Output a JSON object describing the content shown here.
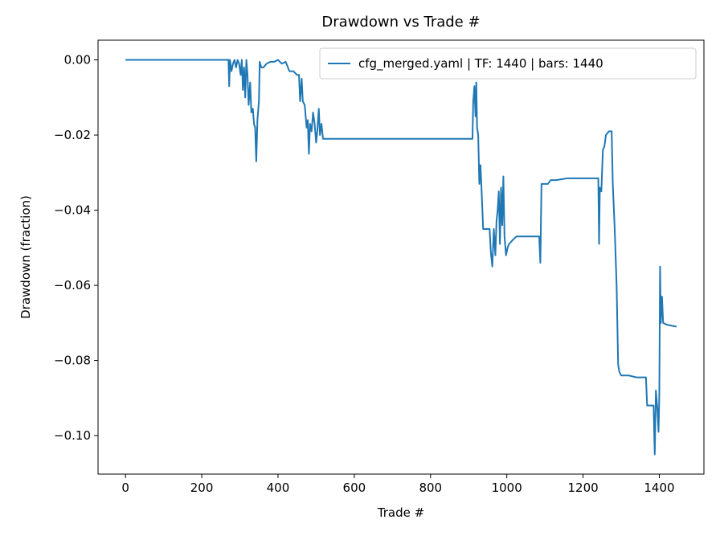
{
  "chart_data": {
    "type": "line",
    "title": "Drawdown vs Trade #",
    "xlabel": "Trade #",
    "ylabel": "Drawdown (fraction)",
    "legend": "upper right",
    "xlim": [
      -72,
      1517
    ],
    "ylim": [
      -0.11025,
      0.00525
    ],
    "xticks": [
      0,
      200,
      400,
      600,
      800,
      1000,
      1200,
      1400
    ],
    "yticks": [
      {
        "value": -0.1,
        "label": "−0.10"
      },
      {
        "value": -0.08,
        "label": "−0.08"
      },
      {
        "value": -0.06,
        "label": "−0.06"
      },
      {
        "value": -0.04,
        "label": "−0.04"
      },
      {
        "value": -0.02,
        "label": "−0.02"
      },
      {
        "value": 0,
        "label": "0.00"
      }
    ],
    "series": [
      {
        "name": "cfg_merged.yaml | TF: 1440 | bars: 1440",
        "color": "#1f77b4",
        "x": [
          0,
          270,
          272,
          274,
          278,
          282,
          286,
          290,
          294,
          298,
          302,
          305,
          308,
          311,
          314,
          317,
          320,
          323,
          327,
          330,
          334,
          337,
          340,
          343,
          346,
          350,
          352,
          356,
          362,
          370,
          380,
          390,
          400,
          410,
          420,
          430,
          440,
          450,
          455,
          458,
          462,
          465,
          470,
          475,
          478,
          481,
          484,
          488,
          492,
          496,
          500,
          503,
          507,
          510,
          514,
          518,
          910,
          912,
          915,
          918,
          920,
          922,
          925,
          928,
          931,
          934,
          938,
          950,
          955,
          958,
          962,
          966,
          970,
          973,
          976,
          979,
          982,
          985,
          988,
          991,
          994,
          998,
          1002,
          1006,
          1015,
          1025,
          1085,
          1088,
          1091,
          1098,
          1108,
          1115,
          1130,
          1160,
          1240,
          1242,
          1244,
          1248,
          1252,
          1256,
          1260,
          1268,
          1275,
          1278,
          1283,
          1288,
          1292,
          1295,
          1300,
          1320,
          1340,
          1365,
          1368,
          1385,
          1388,
          1391,
          1395,
          1398,
          1400,
          1402,
          1404,
          1407,
          1410,
          1420,
          1445
        ],
        "values": [
          0,
          0,
          -0.007,
          0,
          -0.003,
          -0.001,
          0,
          -0.002,
          0,
          -0.001,
          -0.004,
          0,
          -0.008,
          -0.002,
          -0.01,
          0,
          -0.004,
          -0.012,
          -0.006,
          -0.014,
          -0.013,
          -0.017,
          -0.018,
          -0.027,
          -0.016,
          -0.011,
          -0.0005,
          -0.002,
          -0.002,
          -0.001,
          -0.0005,
          -0.0005,
          0,
          -0.001,
          -0.0005,
          -0.003,
          -0.003,
          -0.004,
          -0.004,
          -0.011,
          -0.005,
          -0.011,
          -0.012,
          -0.018,
          -0.016,
          -0.025,
          -0.017,
          -0.019,
          -0.014,
          -0.017,
          -0.022,
          -0.019,
          -0.013,
          -0.02,
          -0.017,
          -0.021,
          -0.021,
          -0.011,
          -0.007,
          -0.015,
          -0.006,
          -0.018,
          -0.02,
          -0.033,
          -0.028,
          -0.035,
          -0.045,
          -0.045,
          -0.045,
          -0.051,
          -0.055,
          -0.045,
          -0.052,
          -0.043,
          -0.04,
          -0.035,
          -0.049,
          -0.034,
          -0.044,
          -0.031,
          -0.047,
          -0.052,
          -0.05,
          -0.049,
          -0.048,
          -0.047,
          -0.047,
          -0.054,
          -0.033,
          -0.033,
          -0.033,
          -0.032,
          -0.032,
          -0.0315,
          -0.0315,
          -0.049,
          -0.034,
          -0.035,
          -0.024,
          -0.023,
          -0.02,
          -0.019,
          -0.019,
          -0.033,
          -0.045,
          -0.06,
          -0.081,
          -0.083,
          -0.084,
          -0.084,
          -0.0845,
          -0.0845,
          -0.092,
          -0.092,
          -0.105,
          -0.088,
          -0.093,
          -0.099,
          -0.089,
          -0.055,
          -0.07,
          -0.063,
          -0.07,
          -0.0705,
          -0.071
        ]
      }
    ]
  }
}
